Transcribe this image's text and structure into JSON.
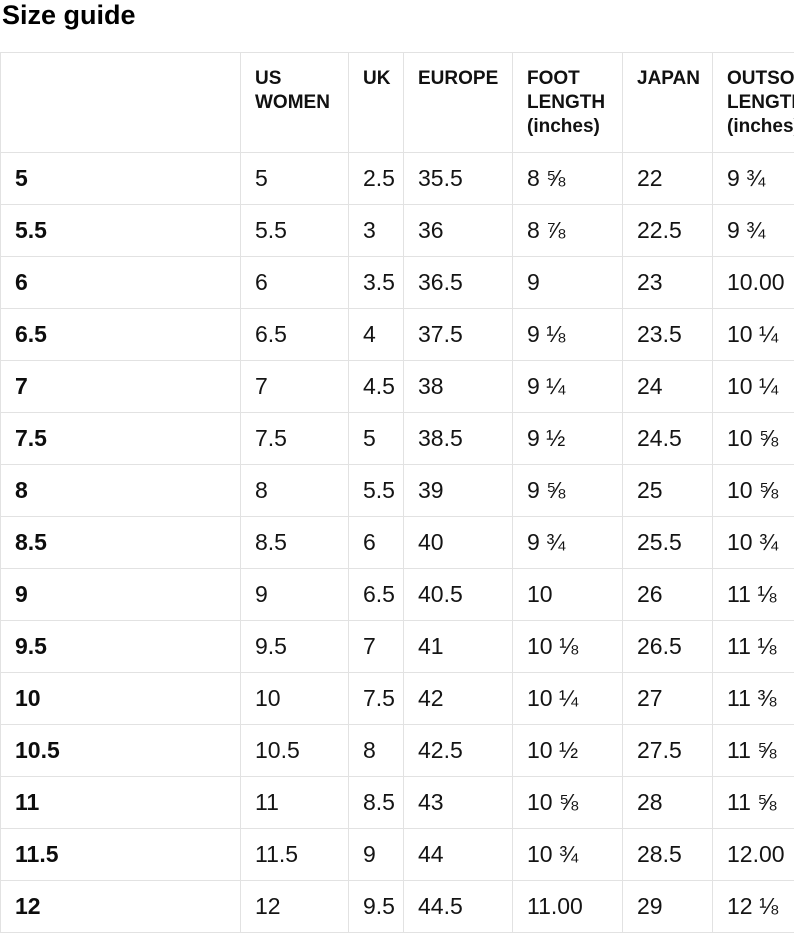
{
  "page_title": "Size guide",
  "table": {
    "headers": [
      {
        "label": ""
      },
      {
        "label": "US WOMEN"
      },
      {
        "label": "UK"
      },
      {
        "label": "EUROPE"
      },
      {
        "label": "FOOT LENGTH (inches)"
      },
      {
        "label": "JAPAN"
      },
      {
        "label": "OUTSOLE LENGTH (inches)"
      }
    ],
    "rows": [
      {
        "label": "5",
        "us_women": "5",
        "uk": "2.5",
        "europe": "35.5",
        "foot_length": "8 ⅝",
        "japan": "22",
        "outsole_length": "9 ¾"
      },
      {
        "label": "5.5",
        "us_women": "5.5",
        "uk": "3",
        "europe": "36",
        "foot_length": "8 ⅞",
        "japan": "22.5",
        "outsole_length": "9 ¾"
      },
      {
        "label": "6",
        "us_women": "6",
        "uk": "3.5",
        "europe": "36.5",
        "foot_length": "9",
        "japan": "23",
        "outsole_length": "10.00"
      },
      {
        "label": "6.5",
        "us_women": "6.5",
        "uk": "4",
        "europe": "37.5",
        "foot_length": "9 ⅛",
        "japan": "23.5",
        "outsole_length": "10 ¼"
      },
      {
        "label": "7",
        "us_women": "7",
        "uk": "4.5",
        "europe": "38",
        "foot_length": "9 ¼",
        "japan": "24",
        "outsole_length": "10 ¼"
      },
      {
        "label": "7.5",
        "us_women": "7.5",
        "uk": "5",
        "europe": "38.5",
        "foot_length": "9 ½",
        "japan": "24.5",
        "outsole_length": "10 ⅝"
      },
      {
        "label": "8",
        "us_women": "8",
        "uk": "5.5",
        "europe": "39",
        "foot_length": "9 ⅝",
        "japan": "25",
        "outsole_length": "10 ⅝"
      },
      {
        "label": "8.5",
        "us_women": "8.5",
        "uk": "6",
        "europe": "40",
        "foot_length": "9 ¾",
        "japan": "25.5",
        "outsole_length": "10 ¾"
      },
      {
        "label": "9",
        "us_women": "9",
        "uk": "6.5",
        "europe": "40.5",
        "foot_length": "10",
        "japan": "26",
        "outsole_length": "11 ⅛"
      },
      {
        "label": "9.5",
        "us_women": "9.5",
        "uk": "7",
        "europe": "41",
        "foot_length": "10 ⅛",
        "japan": "26.5",
        "outsole_length": "11 ⅛"
      },
      {
        "label": "10",
        "us_women": "10",
        "uk": "7.5",
        "europe": "42",
        "foot_length": "10 ¼",
        "japan": "27",
        "outsole_length": "11 ⅜"
      },
      {
        "label": "10.5",
        "us_women": "10.5",
        "uk": "8",
        "europe": "42.5",
        "foot_length": "10 ½",
        "japan": "27.5",
        "outsole_length": "11 ⅝"
      },
      {
        "label": "11",
        "us_women": "11",
        "uk": "8.5",
        "europe": "43",
        "foot_length": "10 ⅝",
        "japan": "28",
        "outsole_length": "11 ⅝"
      },
      {
        "label": "11.5",
        "us_women": "11.5",
        "uk": "9",
        "europe": "44",
        "foot_length": "10 ¾",
        "japan": "28.5",
        "outsole_length": "12.00"
      },
      {
        "label": "12",
        "us_women": "12",
        "uk": "9.5",
        "europe": "44.5",
        "foot_length": "11.00",
        "japan": "29",
        "outsole_length": "12 ⅛"
      }
    ]
  }
}
